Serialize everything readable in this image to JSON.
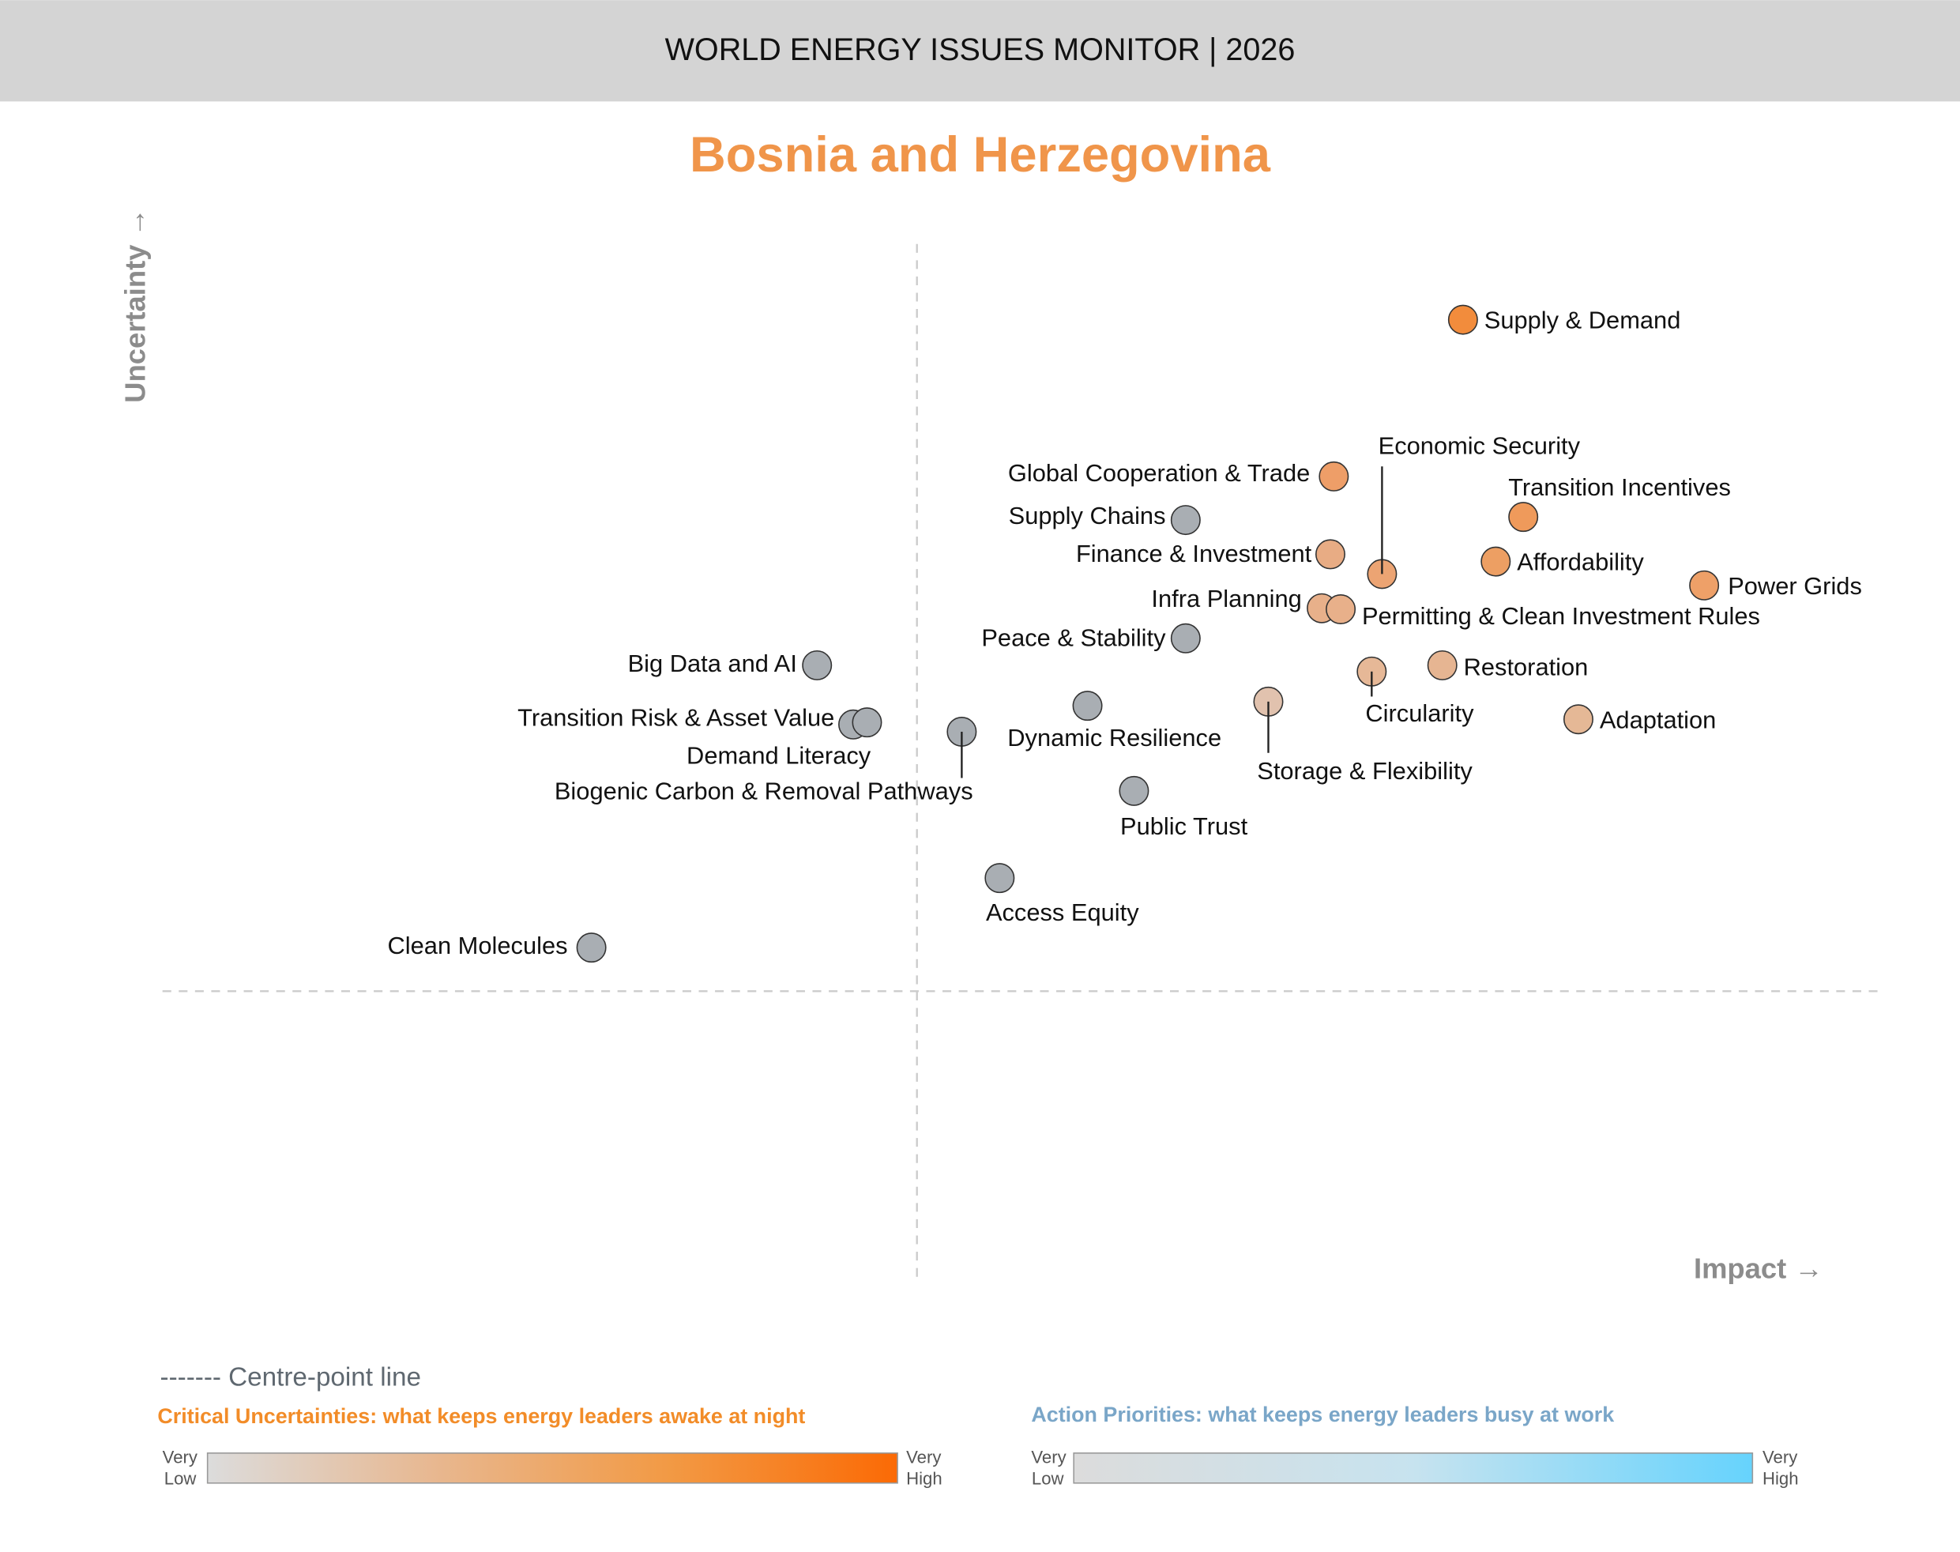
{
  "header": {
    "title": "WORLD ENERGY ISSUES MONITOR | 2026"
  },
  "chart_data": {
    "type": "scatter",
    "title": "Bosnia and Herzegovina",
    "xlabel": "Impact →",
    "ylabel": "Uncertainty →",
    "xlim": [
      0,
      10
    ],
    "ylim": [
      0,
      10
    ],
    "centre_point": {
      "x": 4.38,
      "y": 2.8
    },
    "grid": false,
    "points": [
      {
        "name": "Supply & Demand",
        "x": 7.55,
        "y": 9.27,
        "color": "#f28c3c"
      },
      {
        "name": "Global Cooperation & Trade",
        "x": 6.8,
        "y": 7.76,
        "color": "#ee9e68"
      },
      {
        "name": "Economic Security",
        "x": 7.08,
        "y": 6.82,
        "color": "#eca473"
      },
      {
        "name": "Transition Incentives",
        "x": 7.9,
        "y": 7.37,
        "color": "#ef9a5b"
      },
      {
        "name": "Affordability",
        "x": 7.74,
        "y": 6.94,
        "color": "#ed9f63"
      },
      {
        "name": "Power Grids",
        "x": 8.95,
        "y": 6.71,
        "color": "#eea068"
      },
      {
        "name": "Finance & Investment",
        "x": 6.78,
        "y": 7.01,
        "color": "#e8ac84"
      },
      {
        "name": "Infra Planning",
        "x": 6.73,
        "y": 6.49,
        "color": "#e8b08a"
      },
      {
        "name": "Permitting & Clean Investment Rules",
        "x": 6.84,
        "y": 6.48,
        "color": "#e8b08a"
      },
      {
        "name": "Restoration",
        "x": 7.43,
        "y": 5.94,
        "color": "#e6b592"
      },
      {
        "name": "Circularity",
        "x": 7.02,
        "y": 5.88,
        "color": "#e6b897"
      },
      {
        "name": "Adaptation",
        "x": 8.22,
        "y": 5.42,
        "color": "#e5b896"
      },
      {
        "name": "Storage & Flexibility",
        "x": 6.42,
        "y": 5.59,
        "color": "#e1c2ae"
      },
      {
        "name": "Supply Chains",
        "x": 5.94,
        "y": 7.34,
        "color": "#a9aeb3"
      },
      {
        "name": "Peace & Stability",
        "x": 5.94,
        "y": 6.2,
        "color": "#a9aeb3"
      },
      {
        "name": "Big Data and AI",
        "x": 3.8,
        "y": 5.94,
        "color": "#a9aeb3"
      },
      {
        "name": "Transition Risk & Asset Value",
        "x": 4.01,
        "y": 5.37,
        "color": "#a9aeb3"
      },
      {
        "name": "Demand Literacy",
        "x": 4.09,
        "y": 5.39,
        "color": "#a9aeb3"
      },
      {
        "name": "Biogenic Carbon & Removal Pathways",
        "x": 4.64,
        "y": 5.3,
        "color": "#a9aeb3"
      },
      {
        "name": "Dynamic Resilience",
        "x": 5.37,
        "y": 5.55,
        "color": "#a9aeb3"
      },
      {
        "name": "Public Trust",
        "x": 5.64,
        "y": 4.73,
        "color": "#a9aeb3"
      },
      {
        "name": "Access Equity",
        "x": 4.86,
        "y": 3.89,
        "color": "#a9aeb3"
      },
      {
        "name": "Clean Molecules",
        "x": 2.49,
        "y": 3.22,
        "color": "#a9aeb3"
      }
    ]
  },
  "legend": {
    "centre_line": "------- Centre-point line",
    "uncertainties": {
      "title": "Critical Uncertainties: what keeps energy leaders awake at night",
      "color": "#f28c28",
      "low1": "Very",
      "low2": "Low",
      "high1": "Very",
      "high2": "High",
      "gradient": [
        "#dcdcdc",
        "#e8b78f",
        "#f29a45",
        "#fb6a05"
      ]
    },
    "priorities": {
      "title": "Action Priorities: what keeps energy leaders busy at work",
      "color": "#7aa6c8",
      "low1": "Very",
      "low2": "Low",
      "high1": "Very",
      "high2": "High",
      "gradient": [
        "#dcdcdc",
        "#c7e3ef",
        "#66d3fd"
      ]
    }
  },
  "colors": {
    "title": "#f0954a",
    "header_bg": "#d4d4d4",
    "axis_label": "#8c8c8c"
  }
}
